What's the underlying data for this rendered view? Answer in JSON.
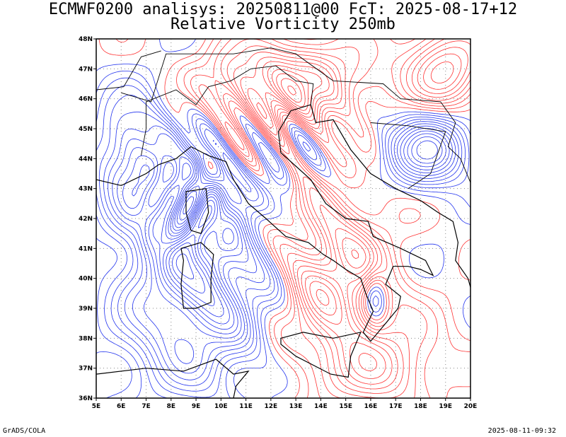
{
  "header": {
    "line1": "ECMWF0200 analisys: 20250811@00 FcT: 2025-08-17+12",
    "line2": "Relative Vorticity 250mb"
  },
  "footer": {
    "left": "GrADS/COLA",
    "right": "2025-08-11-09:32"
  },
  "map": {
    "lon_range": [
      5,
      20
    ],
    "lat_range": [
      36,
      48
    ],
    "lon_ticks": [
      "5E",
      "6E",
      "7E",
      "8E",
      "9E",
      "10E",
      "11E",
      "12E",
      "13E",
      "14E",
      "15E",
      "16E",
      "17E",
      "18E",
      "19E",
      "20E"
    ],
    "lat_ticks": [
      "36N",
      "37N",
      "38N",
      "39N",
      "40N",
      "41N",
      "42N",
      "43N",
      "44N",
      "45N",
      "46N",
      "47N",
      "48N"
    ],
    "grid": true,
    "positive_color": "#ff3333",
    "negative_color": "#2233ee"
  }
}
